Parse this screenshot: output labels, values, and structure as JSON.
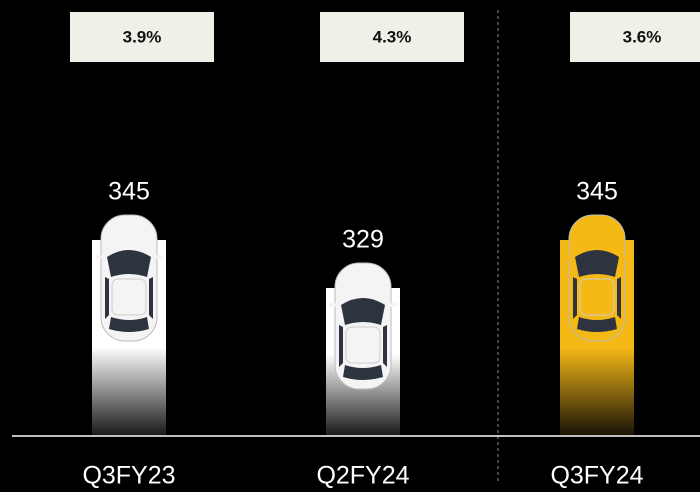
{
  "chart_data": {
    "type": "bar",
    "categories": [
      "Q3FY23",
      "Q2FY24",
      "Q3FY24"
    ],
    "values": [
      345,
      329,
      345
    ],
    "top_labels": [
      "3.9%",
      "4.3%",
      "3.6%"
    ],
    "colors": [
      "#ffffff",
      "#ffffff",
      "#f5b915"
    ],
    "ylim": [
      280,
      350
    ]
  }
}
